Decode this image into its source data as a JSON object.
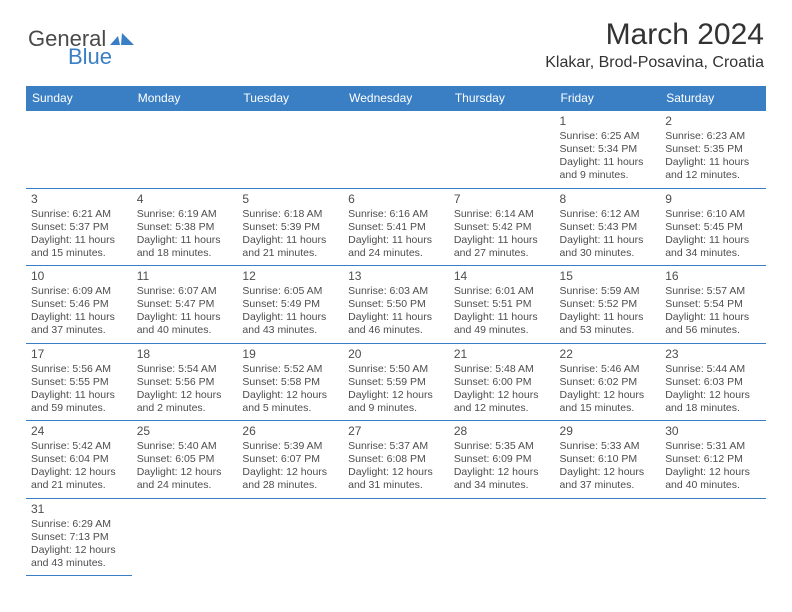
{
  "logo": {
    "general": "General",
    "blue": "Blue"
  },
  "title": "March 2024",
  "location": "Klakar, Brod-Posavina, Croatia",
  "colors": {
    "header_bg": "#3a7fc4",
    "header_text": "#ffffff",
    "border": "#3a7fc4",
    "text": "#4d4d4d",
    "logo_gray": "#4a4a4a",
    "logo_blue": "#3a7fc4",
    "background": "#ffffff"
  },
  "weekdays": [
    "Sunday",
    "Monday",
    "Tuesday",
    "Wednesday",
    "Thursday",
    "Friday",
    "Saturday"
  ],
  "cells": [
    [
      null,
      null,
      null,
      null,
      null,
      {
        "d": "1",
        "sr": "Sunrise: 6:25 AM",
        "ss": "Sunset: 5:34 PM",
        "dl1": "Daylight: 11 hours",
        "dl2": "and 9 minutes."
      },
      {
        "d": "2",
        "sr": "Sunrise: 6:23 AM",
        "ss": "Sunset: 5:35 PM",
        "dl1": "Daylight: 11 hours",
        "dl2": "and 12 minutes."
      }
    ],
    [
      {
        "d": "3",
        "sr": "Sunrise: 6:21 AM",
        "ss": "Sunset: 5:37 PM",
        "dl1": "Daylight: 11 hours",
        "dl2": "and 15 minutes."
      },
      {
        "d": "4",
        "sr": "Sunrise: 6:19 AM",
        "ss": "Sunset: 5:38 PM",
        "dl1": "Daylight: 11 hours",
        "dl2": "and 18 minutes."
      },
      {
        "d": "5",
        "sr": "Sunrise: 6:18 AM",
        "ss": "Sunset: 5:39 PM",
        "dl1": "Daylight: 11 hours",
        "dl2": "and 21 minutes."
      },
      {
        "d": "6",
        "sr": "Sunrise: 6:16 AM",
        "ss": "Sunset: 5:41 PM",
        "dl1": "Daylight: 11 hours",
        "dl2": "and 24 minutes."
      },
      {
        "d": "7",
        "sr": "Sunrise: 6:14 AM",
        "ss": "Sunset: 5:42 PM",
        "dl1": "Daylight: 11 hours",
        "dl2": "and 27 minutes."
      },
      {
        "d": "8",
        "sr": "Sunrise: 6:12 AM",
        "ss": "Sunset: 5:43 PM",
        "dl1": "Daylight: 11 hours",
        "dl2": "and 30 minutes."
      },
      {
        "d": "9",
        "sr": "Sunrise: 6:10 AM",
        "ss": "Sunset: 5:45 PM",
        "dl1": "Daylight: 11 hours",
        "dl2": "and 34 minutes."
      }
    ],
    [
      {
        "d": "10",
        "sr": "Sunrise: 6:09 AM",
        "ss": "Sunset: 5:46 PM",
        "dl1": "Daylight: 11 hours",
        "dl2": "and 37 minutes."
      },
      {
        "d": "11",
        "sr": "Sunrise: 6:07 AM",
        "ss": "Sunset: 5:47 PM",
        "dl1": "Daylight: 11 hours",
        "dl2": "and 40 minutes."
      },
      {
        "d": "12",
        "sr": "Sunrise: 6:05 AM",
        "ss": "Sunset: 5:49 PM",
        "dl1": "Daylight: 11 hours",
        "dl2": "and 43 minutes."
      },
      {
        "d": "13",
        "sr": "Sunrise: 6:03 AM",
        "ss": "Sunset: 5:50 PM",
        "dl1": "Daylight: 11 hours",
        "dl2": "and 46 minutes."
      },
      {
        "d": "14",
        "sr": "Sunrise: 6:01 AM",
        "ss": "Sunset: 5:51 PM",
        "dl1": "Daylight: 11 hours",
        "dl2": "and 49 minutes."
      },
      {
        "d": "15",
        "sr": "Sunrise: 5:59 AM",
        "ss": "Sunset: 5:52 PM",
        "dl1": "Daylight: 11 hours",
        "dl2": "and 53 minutes."
      },
      {
        "d": "16",
        "sr": "Sunrise: 5:57 AM",
        "ss": "Sunset: 5:54 PM",
        "dl1": "Daylight: 11 hours",
        "dl2": "and 56 minutes."
      }
    ],
    [
      {
        "d": "17",
        "sr": "Sunrise: 5:56 AM",
        "ss": "Sunset: 5:55 PM",
        "dl1": "Daylight: 11 hours",
        "dl2": "and 59 minutes."
      },
      {
        "d": "18",
        "sr": "Sunrise: 5:54 AM",
        "ss": "Sunset: 5:56 PM",
        "dl1": "Daylight: 12 hours",
        "dl2": "and 2 minutes."
      },
      {
        "d": "19",
        "sr": "Sunrise: 5:52 AM",
        "ss": "Sunset: 5:58 PM",
        "dl1": "Daylight: 12 hours",
        "dl2": "and 5 minutes."
      },
      {
        "d": "20",
        "sr": "Sunrise: 5:50 AM",
        "ss": "Sunset: 5:59 PM",
        "dl1": "Daylight: 12 hours",
        "dl2": "and 9 minutes."
      },
      {
        "d": "21",
        "sr": "Sunrise: 5:48 AM",
        "ss": "Sunset: 6:00 PM",
        "dl1": "Daylight: 12 hours",
        "dl2": "and 12 minutes."
      },
      {
        "d": "22",
        "sr": "Sunrise: 5:46 AM",
        "ss": "Sunset: 6:02 PM",
        "dl1": "Daylight: 12 hours",
        "dl2": "and 15 minutes."
      },
      {
        "d": "23",
        "sr": "Sunrise: 5:44 AM",
        "ss": "Sunset: 6:03 PM",
        "dl1": "Daylight: 12 hours",
        "dl2": "and 18 minutes."
      }
    ],
    [
      {
        "d": "24",
        "sr": "Sunrise: 5:42 AM",
        "ss": "Sunset: 6:04 PM",
        "dl1": "Daylight: 12 hours",
        "dl2": "and 21 minutes."
      },
      {
        "d": "25",
        "sr": "Sunrise: 5:40 AM",
        "ss": "Sunset: 6:05 PM",
        "dl1": "Daylight: 12 hours",
        "dl2": "and 24 minutes."
      },
      {
        "d": "26",
        "sr": "Sunrise: 5:39 AM",
        "ss": "Sunset: 6:07 PM",
        "dl1": "Daylight: 12 hours",
        "dl2": "and 28 minutes."
      },
      {
        "d": "27",
        "sr": "Sunrise: 5:37 AM",
        "ss": "Sunset: 6:08 PM",
        "dl1": "Daylight: 12 hours",
        "dl2": "and 31 minutes."
      },
      {
        "d": "28",
        "sr": "Sunrise: 5:35 AM",
        "ss": "Sunset: 6:09 PM",
        "dl1": "Daylight: 12 hours",
        "dl2": "and 34 minutes."
      },
      {
        "d": "29",
        "sr": "Sunrise: 5:33 AM",
        "ss": "Sunset: 6:10 PM",
        "dl1": "Daylight: 12 hours",
        "dl2": "and 37 minutes."
      },
      {
        "d": "30",
        "sr": "Sunrise: 5:31 AM",
        "ss": "Sunset: 6:12 PM",
        "dl1": "Daylight: 12 hours",
        "dl2": "and 40 minutes."
      }
    ],
    [
      {
        "d": "31",
        "sr": "Sunrise: 6:29 AM",
        "ss": "Sunset: 7:13 PM",
        "dl1": "Daylight: 12 hours",
        "dl2": "and 43 minutes."
      },
      null,
      null,
      null,
      null,
      null,
      null
    ]
  ]
}
